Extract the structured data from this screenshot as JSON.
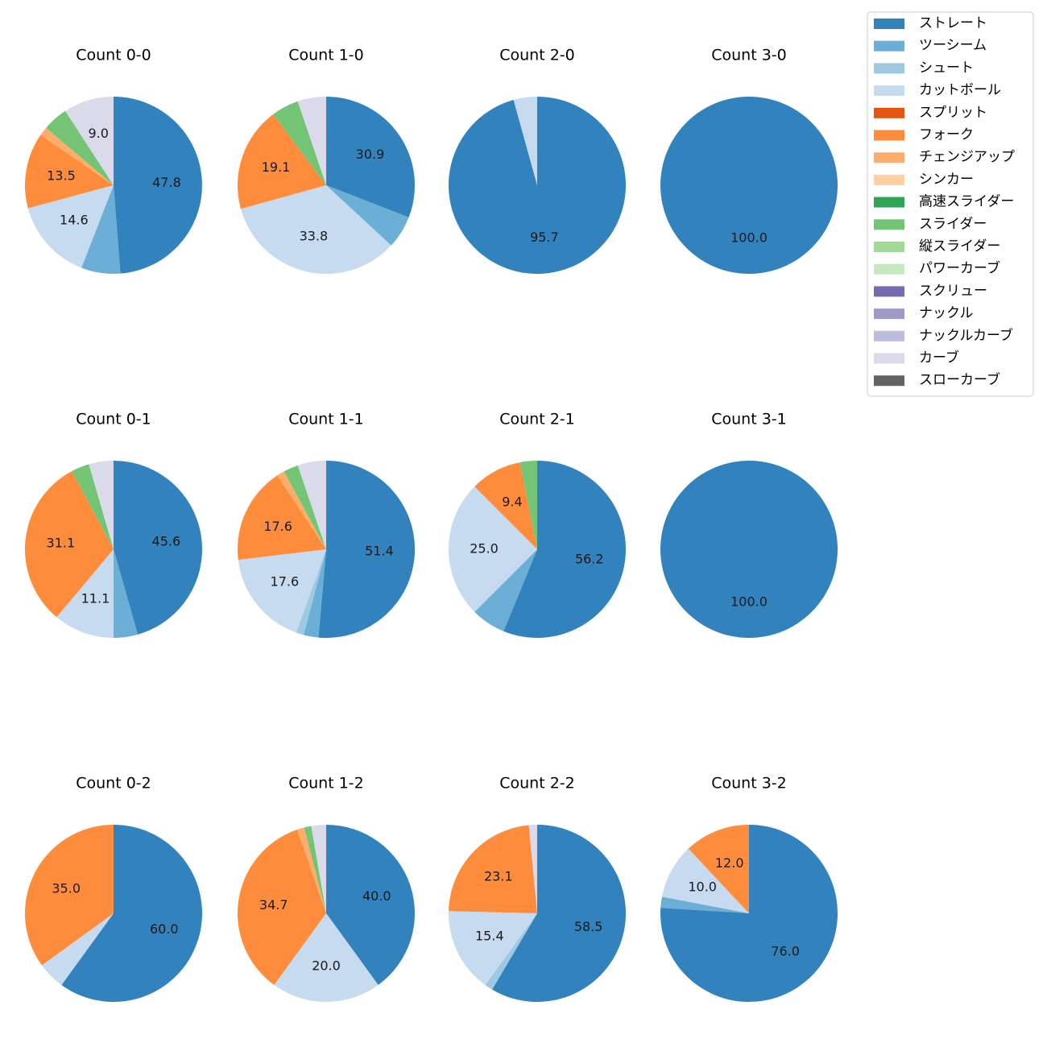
{
  "chart_data": {
    "type": "pie",
    "legend": {
      "placement": "top-right",
      "entries": [
        {
          "name": "ストレート",
          "color": "#3182bd"
        },
        {
          "name": "ツーシーム",
          "color": "#6baed6"
        },
        {
          "name": "シュート",
          "color": "#9ecae1"
        },
        {
          "name": "カットボール",
          "color": "#c6dbef"
        },
        {
          "name": "スプリット",
          "color": "#e6550d"
        },
        {
          "name": "フォーク",
          "color": "#fd8d3c"
        },
        {
          "name": "チェンジアップ",
          "color": "#fdae6b"
        },
        {
          "name": "シンカー",
          "color": "#fdd0a2"
        },
        {
          "name": "高速スライダー",
          "color": "#31a354"
        },
        {
          "name": "スライダー",
          "color": "#74c476"
        },
        {
          "name": "縦スライダー",
          "color": "#a1d99b"
        },
        {
          "name": "パワーカーブ",
          "color": "#c7e9c0"
        },
        {
          "name": "スクリュー",
          "color": "#756bb1"
        },
        {
          "name": "ナックル",
          "color": "#9e9ac8"
        },
        {
          "name": "ナックルカーブ",
          "color": "#bcbddc"
        },
        {
          "name": "カーブ",
          "color": "#dadaeb"
        },
        {
          "name": "スローカーブ",
          "color": "#636363"
        }
      ]
    },
    "label_threshold": 9,
    "charts": [
      {
        "title": "Count 0-0",
        "slices": [
          {
            "type": "ストレート",
            "value": 47.8
          },
          {
            "type": "ツーシーム",
            "value": 7.0
          },
          {
            "type": "カットボール",
            "value": 14.6
          },
          {
            "type": "フォーク",
            "value": 13.5
          },
          {
            "type": "チェンジアップ",
            "value": 1.6
          },
          {
            "type": "スライダー",
            "value": 4.5
          },
          {
            "type": "カーブ",
            "value": 9.0
          }
        ]
      },
      {
        "title": "Count 1-0",
        "slices": [
          {
            "type": "ストレート",
            "value": 30.9
          },
          {
            "type": "ツーシーム",
            "value": 6.0
          },
          {
            "type": "カットボール",
            "value": 33.8
          },
          {
            "type": "フォーク",
            "value": 19.1
          },
          {
            "type": "スライダー",
            "value": 5.0
          },
          {
            "type": "カーブ",
            "value": 5.2
          }
        ]
      },
      {
        "title": "Count 2-0",
        "slices": [
          {
            "type": "ストレート",
            "value": 95.7
          },
          {
            "type": "カットボール",
            "value": 4.3
          }
        ]
      },
      {
        "title": "Count 3-0",
        "slices": [
          {
            "type": "ストレート",
            "value": 100.0
          }
        ]
      },
      {
        "title": "Count 0-1",
        "slices": [
          {
            "type": "ストレート",
            "value": 45.6
          },
          {
            "type": "ツーシーム",
            "value": 4.4
          },
          {
            "type": "カットボール",
            "value": 11.1
          },
          {
            "type": "フォーク",
            "value": 31.1
          },
          {
            "type": "スライダー",
            "value": 3.3
          },
          {
            "type": "カーブ",
            "value": 4.5
          }
        ]
      },
      {
        "title": "Count 1-1",
        "slices": [
          {
            "type": "ストレート",
            "value": 51.4
          },
          {
            "type": "ツーシーム",
            "value": 2.7
          },
          {
            "type": "シュート",
            "value": 1.4
          },
          {
            "type": "カットボール",
            "value": 17.6
          },
          {
            "type": "フォーク",
            "value": 17.6
          },
          {
            "type": "チェンジアップ",
            "value": 1.4
          },
          {
            "type": "スライダー",
            "value": 2.7
          },
          {
            "type": "カーブ",
            "value": 5.2
          }
        ]
      },
      {
        "title": "Count 2-1",
        "slices": [
          {
            "type": "ストレート",
            "value": 56.2
          },
          {
            "type": "ツーシーム",
            "value": 6.3
          },
          {
            "type": "カットボール",
            "value": 25.0
          },
          {
            "type": "フォーク",
            "value": 9.4
          },
          {
            "type": "スライダー",
            "value": 3.1
          }
        ]
      },
      {
        "title": "Count 3-1",
        "slices": [
          {
            "type": "ストレート",
            "value": 100.0
          }
        ]
      },
      {
        "title": "Count 0-2",
        "slices": [
          {
            "type": "ストレート",
            "value": 60.0
          },
          {
            "type": "カットボール",
            "value": 5.0
          },
          {
            "type": "フォーク",
            "value": 35.0
          }
        ]
      },
      {
        "title": "Count 1-2",
        "slices": [
          {
            "type": "ストレート",
            "value": 40.0
          },
          {
            "type": "カットボール",
            "value": 20.0
          },
          {
            "type": "フォーク",
            "value": 34.7
          },
          {
            "type": "チェンジアップ",
            "value": 1.3
          },
          {
            "type": "スライダー",
            "value": 1.3
          },
          {
            "type": "カーブ",
            "value": 2.7
          }
        ]
      },
      {
        "title": "Count 2-2",
        "slices": [
          {
            "type": "ストレート",
            "value": 58.5
          },
          {
            "type": "シュート",
            "value": 1.5
          },
          {
            "type": "カットボール",
            "value": 15.4
          },
          {
            "type": "フォーク",
            "value": 23.1
          },
          {
            "type": "カーブ",
            "value": 1.5
          }
        ]
      },
      {
        "title": "Count 3-2",
        "slices": [
          {
            "type": "ストレート",
            "value": 76.0
          },
          {
            "type": "ツーシーム",
            "value": 2.0
          },
          {
            "type": "カットボール",
            "value": 10.0
          },
          {
            "type": "フォーク",
            "value": 12.0
          }
        ]
      }
    ]
  }
}
